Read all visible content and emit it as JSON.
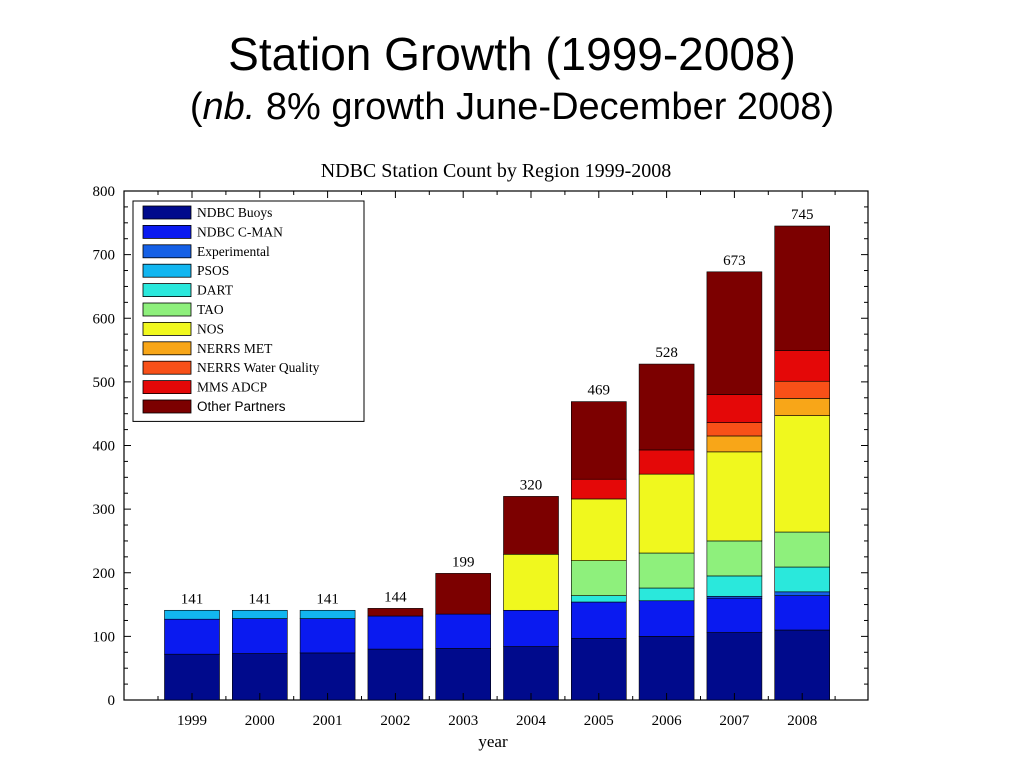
{
  "slide": {
    "title": "Station Growth (1999-2008)",
    "subtitle_open": "(",
    "subtitle_em": "nb.",
    "subtitle_rest": " 8% growth June-December 2008)"
  },
  "chart_data": {
    "type": "bar",
    "stacked": true,
    "title": "NDBC Station Count by Region 1999-2008",
    "xlabel": "year",
    "ylabel": "",
    "ylim": [
      0,
      800
    ],
    "yticks": [
      0,
      100,
      200,
      300,
      400,
      500,
      600,
      700,
      800
    ],
    "grid": false,
    "legend_position": "top-left",
    "categories": [
      "1999",
      "2000",
      "2001",
      "2002",
      "2003",
      "2004",
      "2005",
      "2006",
      "2007",
      "2008"
    ],
    "totals": [
      141,
      141,
      141,
      144,
      199,
      320,
      469,
      528,
      673,
      745
    ],
    "series": [
      {
        "name": "NDBC Buoys",
        "color": "#000a8c",
        "values": [
          72,
          73,
          74,
          80,
          81,
          84,
          97,
          100,
          106,
          110
        ]
      },
      {
        "name": "NDBC C-MAN",
        "color": "#0a1af0",
        "values": [
          55,
          55,
          54,
          52,
          54,
          57,
          57,
          56,
          54,
          54
        ]
      },
      {
        "name": "Experimental",
        "color": "#1560e6",
        "values": [
          0,
          0,
          0,
          0,
          0,
          0,
          0,
          0,
          3,
          6
        ]
      },
      {
        "name": "PSOS",
        "color": "#12b6f0",
        "values": [
          14,
          13,
          13,
          0,
          0,
          0,
          0,
          0,
          0,
          0
        ]
      },
      {
        "name": "DART",
        "color": "#2ae8dc",
        "values": [
          0,
          0,
          0,
          0,
          0,
          0,
          10,
          20,
          32,
          39
        ]
      },
      {
        "name": "TAO",
        "color": "#8ef07c",
        "values": [
          0,
          0,
          0,
          0,
          0,
          0,
          55,
          55,
          55,
          55
        ]
      },
      {
        "name": "NOS",
        "color": "#f0f81e",
        "values": [
          0,
          0,
          0,
          0,
          0,
          88,
          97,
          124,
          140,
          183
        ]
      },
      {
        "name": "NERRS MET",
        "color": "#f8a618",
        "values": [
          0,
          0,
          0,
          0,
          0,
          0,
          0,
          0,
          25,
          27
        ]
      },
      {
        "name": "NERRS Water Quality",
        "color": "#f85018",
        "values": [
          0,
          0,
          0,
          0,
          0,
          0,
          0,
          0,
          21,
          27
        ]
      },
      {
        "name": "MMS ADCP",
        "color": "#e40808",
        "values": [
          0,
          0,
          0,
          0,
          0,
          0,
          31,
          38,
          44,
          48
        ]
      },
      {
        "name": "Other Partners",
        "color": "#7c0000",
        "values": [
          0,
          0,
          0,
          12,
          64,
          91,
          122,
          135,
          193,
          196
        ]
      }
    ]
  }
}
